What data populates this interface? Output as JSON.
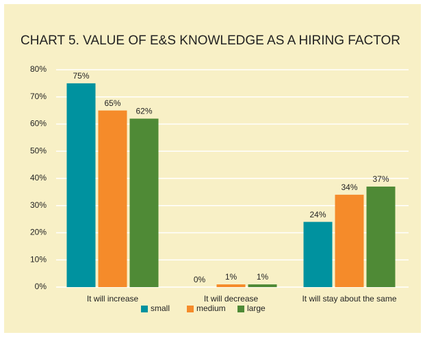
{
  "chart_data": {
    "type": "bar",
    "title": "CHART 5. VALUE OF E&S KNOWLEDGE AS A HIRING FACTOR",
    "categories": [
      "It will increase",
      "It will decrease",
      "It will stay about the same"
    ],
    "series": [
      {
        "name": "small",
        "color": "#00929f",
        "values": [
          75,
          0,
          24
        ],
        "value_labels": [
          "75%",
          "0%",
          "24%"
        ]
      },
      {
        "name": "medium",
        "color": "#f58b2a",
        "values": [
          65,
          1,
          34
        ],
        "value_labels": [
          "65%",
          "1%",
          "34%"
        ]
      },
      {
        "name": "large",
        "color": "#4f8a36",
        "values": [
          62,
          1,
          37
        ],
        "value_labels": [
          "62%",
          "1%",
          "37%"
        ]
      }
    ],
    "ylim": [
      0,
      80
    ],
    "yticks": [
      {
        "value": 0,
        "label": "0%"
      },
      {
        "value": 10,
        "label": "10%"
      },
      {
        "value": 20,
        "label": "20%"
      },
      {
        "value": 30,
        "label": "30%"
      },
      {
        "value": 40,
        "label": "40%"
      },
      {
        "value": 50,
        "label": "50%"
      },
      {
        "value": 60,
        "label": "60%"
      },
      {
        "value": 70,
        "label": "70%"
      },
      {
        "value": 80,
        "label": "80%"
      }
    ],
    "grid": true,
    "legend": "bottom"
  }
}
